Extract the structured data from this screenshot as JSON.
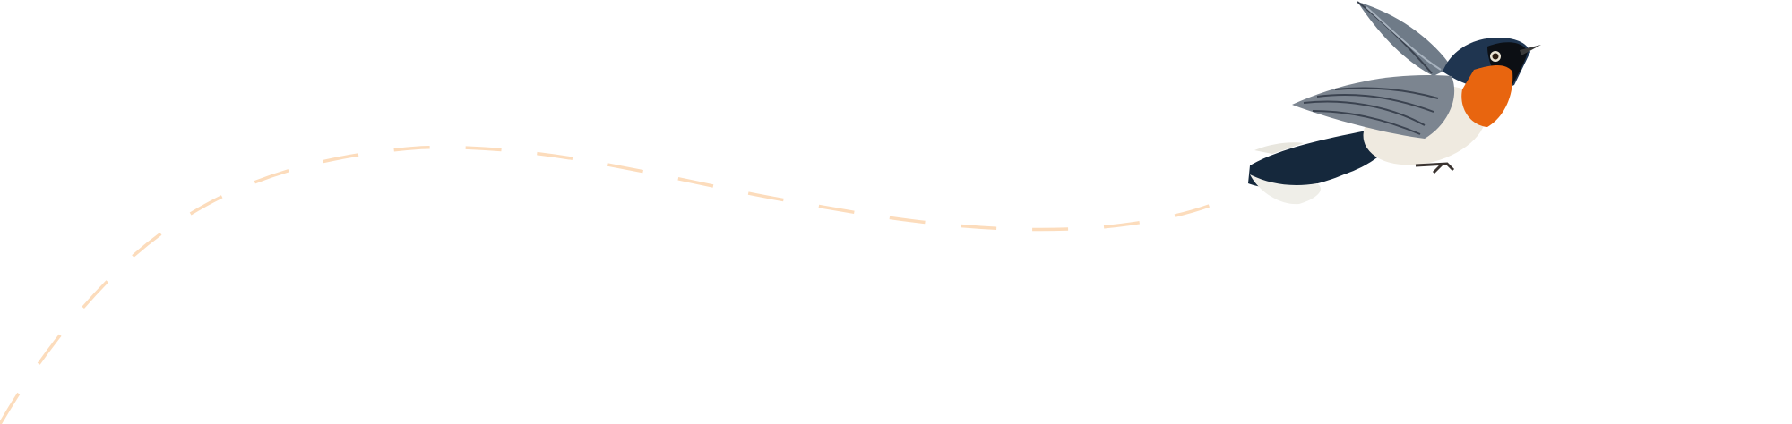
{
  "illustration": {
    "subject": "bird-in-flight",
    "colors": {
      "flight_path": "#fcdcbc",
      "head": "#1f3550",
      "throat": "#e8650f",
      "belly": "#efeae0",
      "wing": "#7c8590",
      "tail": "#12253a"
    }
  }
}
